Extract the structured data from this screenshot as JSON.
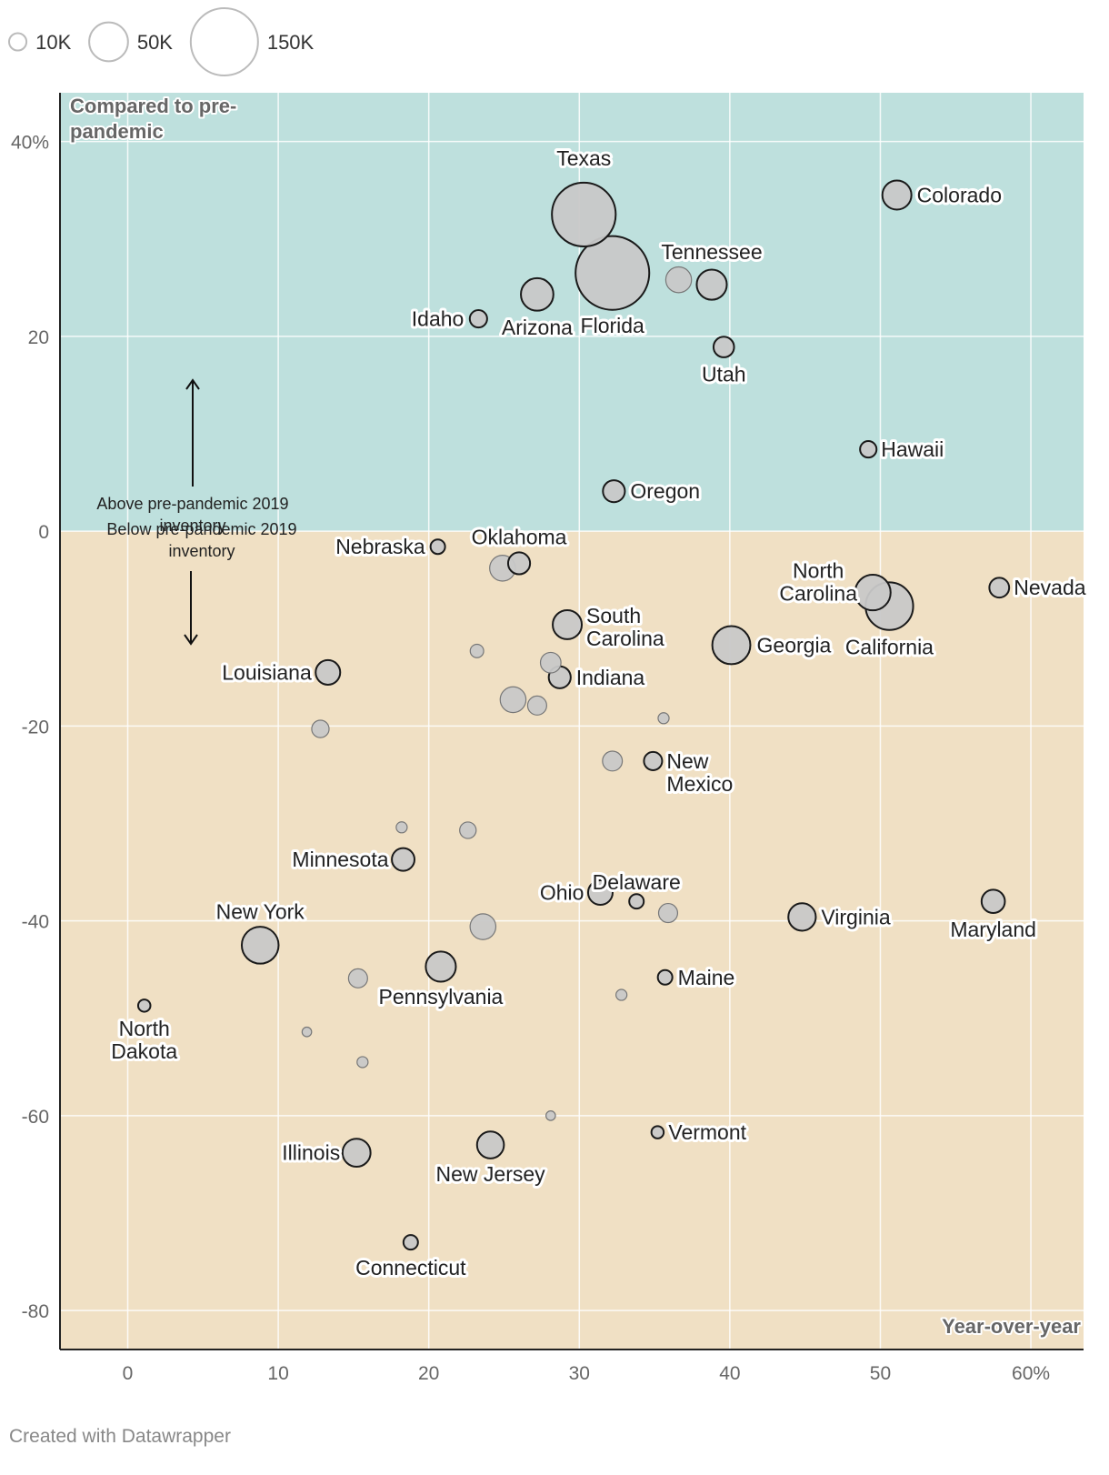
{
  "chart_data": {
    "type": "scatter",
    "xlabel": "Year-over-year",
    "ylabel": "Compared to pre-pandemic",
    "xlim": [
      -4.5,
      63.5
    ],
    "ylim": [
      -84,
      45
    ],
    "x_ticks": [
      {
        "value": 0,
        "label": "0"
      },
      {
        "value": 10,
        "label": "10"
      },
      {
        "value": 20,
        "label": "20"
      },
      {
        "value": 30,
        "label": "30"
      },
      {
        "value": 40,
        "label": "40"
      },
      {
        "value": 50,
        "label": "50"
      },
      {
        "value": 60,
        "label": "60%"
      }
    ],
    "y_ticks": [
      {
        "value": 40,
        "label": "40%"
      },
      {
        "value": 20,
        "label": "20"
      },
      {
        "value": 0,
        "label": "0"
      },
      {
        "value": -20,
        "label": "-20"
      },
      {
        "value": -40,
        "label": "-40"
      },
      {
        "value": -60,
        "label": "-60"
      },
      {
        "value": -80,
        "label": "-80"
      }
    ],
    "grid": true,
    "size_legend": [
      {
        "value": 10000,
        "label": "10K"
      },
      {
        "value": 50000,
        "label": "50K"
      },
      {
        "value": 150000,
        "label": "150K"
      }
    ],
    "regions": [
      {
        "name": "above",
        "from": 0,
        "to": 45,
        "color": "#bee0dd"
      },
      {
        "name": "below",
        "from": -84,
        "to": 0,
        "color": "#f0e0c4"
      }
    ],
    "annotations": {
      "above": "Above pre-pandemic 2019 inventory",
      "below": "Below pre-pandemic 2019 inventory"
    },
    "points": [
      {
        "name": "Texas",
        "x": 30.3,
        "y": 32.5,
        "size": 135000,
        "label": true
      },
      {
        "name": "Florida",
        "x": 32.2,
        "y": 26.5,
        "size": 180000,
        "label": true
      },
      {
        "name": "Colorado",
        "x": 51.1,
        "y": 34.5,
        "size": 28000,
        "label": true
      },
      {
        "name": "Tennessee",
        "x": 38.8,
        "y": 25.3,
        "size": 30000,
        "label": true
      },
      {
        "name": "Idaho",
        "x": 23.3,
        "y": 21.8,
        "size": 10000,
        "label": true
      },
      {
        "name": "Arizona",
        "x": 27.2,
        "y": 24.3,
        "size": 35000,
        "label": true
      },
      {
        "name": "Utah",
        "x": 39.6,
        "y": 18.9,
        "size": 14000,
        "label": true
      },
      {
        "name": "Hawaii",
        "x": 49.2,
        "y": 8.4,
        "size": 9000,
        "label": true
      },
      {
        "name": "Oregon",
        "x": 32.3,
        "y": 4.1,
        "size": 16000,
        "label": true
      },
      {
        "name": "Nebraska",
        "x": 20.6,
        "y": -1.6,
        "size": 7000,
        "label": true
      },
      {
        "name": "Oklahoma",
        "x": 26.0,
        "y": -3.3,
        "size": 16000,
        "label": true
      },
      {
        "name": "Nevada",
        "x": 57.9,
        "y": -5.8,
        "size": 13000,
        "label": true
      },
      {
        "name": "North Carolina",
        "x": 49.5,
        "y": -6.3,
        "size": 42000,
        "label": true
      },
      {
        "name": "California",
        "x": 50.6,
        "y": -7.7,
        "size": 75000,
        "label": true
      },
      {
        "name": "South Carolina",
        "x": 29.2,
        "y": -9.6,
        "size": 28000,
        "label": true
      },
      {
        "name": "Georgia",
        "x": 40.1,
        "y": -11.7,
        "size": 48000,
        "label": true
      },
      {
        "name": "Louisiana",
        "x": 13.3,
        "y": -14.5,
        "size": 20000,
        "label": true
      },
      {
        "name": "Indiana",
        "x": 28.7,
        "y": -15.0,
        "size": 16000,
        "label": true
      },
      {
        "name": "New Mexico",
        "x": 34.9,
        "y": -23.6,
        "size": 11000,
        "label": true
      },
      {
        "name": "Minnesota",
        "x": 18.3,
        "y": -33.7,
        "size": 17000,
        "label": true
      },
      {
        "name": "Ohio",
        "x": 31.4,
        "y": -37.1,
        "size": 20000,
        "label": true
      },
      {
        "name": "Delaware",
        "x": 33.8,
        "y": -38.0,
        "size": 7000,
        "label": true
      },
      {
        "name": "Virginia",
        "x": 44.8,
        "y": -39.6,
        "size": 25000,
        "label": true
      },
      {
        "name": "Maryland",
        "x": 57.5,
        "y": -38.0,
        "size": 18000,
        "label": true
      },
      {
        "name": "New York",
        "x": 8.8,
        "y": -42.5,
        "size": 45000,
        "label": true
      },
      {
        "name": "Pennsylvania",
        "x": 20.8,
        "y": -44.7,
        "size": 30000,
        "label": true
      },
      {
        "name": "Maine",
        "x": 35.7,
        "y": -45.8,
        "size": 7000,
        "label": true
      },
      {
        "name": "North Dakota",
        "x": 1.1,
        "y": -48.7,
        "size": 5000,
        "label": true
      },
      {
        "name": "Vermont",
        "x": 35.2,
        "y": -61.7,
        "size": 5000,
        "label": true
      },
      {
        "name": "Illinois",
        "x": 15.2,
        "y": -63.8,
        "size": 26000,
        "label": true
      },
      {
        "name": "New Jersey",
        "x": 24.1,
        "y": -63.0,
        "size": 24000,
        "label": true
      },
      {
        "name": "Connecticut",
        "x": 18.8,
        "y": -73.0,
        "size": 7000,
        "label": true
      },
      {
        "name": "",
        "x": 36.6,
        "y": 25.8,
        "size": 22000,
        "label": false
      },
      {
        "name": "",
        "x": 24.9,
        "y": -3.8,
        "size": 22000,
        "label": false
      },
      {
        "name": "",
        "x": 23.2,
        "y": -12.3,
        "size": 6000,
        "label": false
      },
      {
        "name": "",
        "x": 28.1,
        "y": -13.5,
        "size": 14000,
        "label": false
      },
      {
        "name": "",
        "x": 25.6,
        "y": -17.3,
        "size": 22000,
        "label": false
      },
      {
        "name": "",
        "x": 27.2,
        "y": -17.9,
        "size": 12000,
        "label": false
      },
      {
        "name": "",
        "x": 35.6,
        "y": -19.2,
        "size": 4000,
        "label": false
      },
      {
        "name": "",
        "x": 12.8,
        "y": -20.3,
        "size": 10000,
        "label": false
      },
      {
        "name": "",
        "x": 32.2,
        "y": -23.6,
        "size": 13000,
        "label": false
      },
      {
        "name": "",
        "x": 18.2,
        "y": -30.4,
        "size": 4000,
        "label": false
      },
      {
        "name": "",
        "x": 22.6,
        "y": -30.7,
        "size": 9000,
        "label": false
      },
      {
        "name": "",
        "x": 35.9,
        "y": -39.2,
        "size": 12000,
        "label": false
      },
      {
        "name": "",
        "x": 23.6,
        "y": -40.6,
        "size": 22000,
        "label": false
      },
      {
        "name": "",
        "x": 15.3,
        "y": -45.9,
        "size": 12000,
        "label": false
      },
      {
        "name": "",
        "x": 32.8,
        "y": -47.6,
        "size": 4000,
        "label": false
      },
      {
        "name": "",
        "x": 11.9,
        "y": -51.4,
        "size": 3000,
        "label": false
      },
      {
        "name": "",
        "x": 15.6,
        "y": -54.5,
        "size": 4000,
        "label": false
      },
      {
        "name": "",
        "x": 28.1,
        "y": -60.0,
        "size": 3000,
        "label": false
      }
    ]
  },
  "footer": {
    "credit": "Created with Datawrapper"
  }
}
